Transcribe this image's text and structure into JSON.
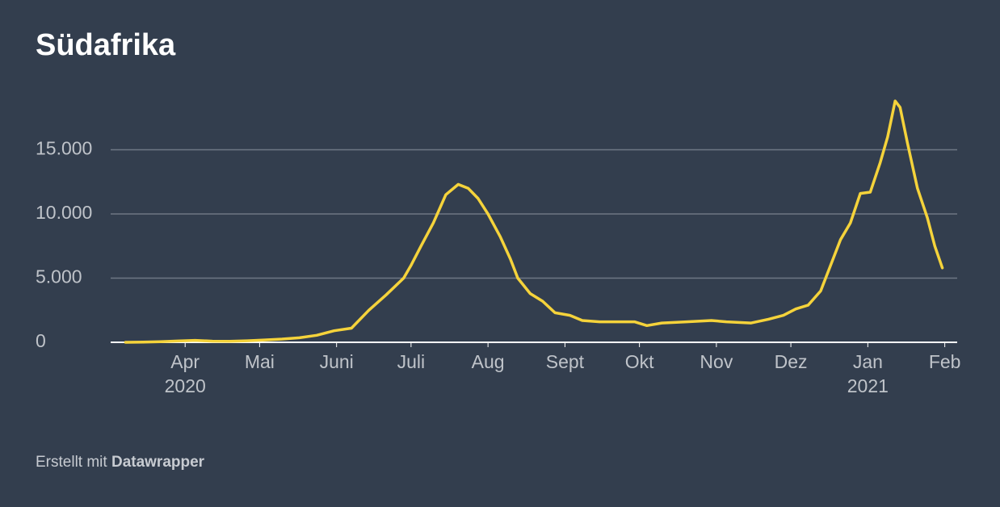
{
  "chart_data": {
    "type": "line",
    "title": "Südafrika",
    "x": [
      "2020-03-08",
      "2020-03-15",
      "2020-03-22",
      "2020-03-29",
      "2020-04-05",
      "2020-04-12",
      "2020-04-19",
      "2020-04-26",
      "2020-05-03",
      "2020-05-10",
      "2020-05-17",
      "2020-05-24",
      "2020-05-31",
      "2020-06-07",
      "2020-06-14",
      "2020-06-21",
      "2020-06-28",
      "2020-07-01",
      "2020-07-05",
      "2020-07-10",
      "2020-07-15",
      "2020-07-20",
      "2020-07-24",
      "2020-07-28",
      "2020-08-01",
      "2020-08-06",
      "2020-08-10",
      "2020-08-13",
      "2020-08-18",
      "2020-08-23",
      "2020-08-28",
      "2020-09-03",
      "2020-09-08",
      "2020-09-15",
      "2020-09-22",
      "2020-09-29",
      "2020-10-04",
      "2020-10-10",
      "2020-10-20",
      "2020-10-30",
      "2020-11-05",
      "2020-11-15",
      "2020-11-22",
      "2020-11-28",
      "2020-12-03",
      "2020-12-08",
      "2020-12-13",
      "2020-12-17",
      "2020-12-21",
      "2020-12-25",
      "2020-12-29",
      "2021-01-02",
      "2021-01-06",
      "2021-01-09",
      "2021-01-12",
      "2021-01-14",
      "2021-01-17",
      "2021-01-21",
      "2021-01-25",
      "2021-01-28",
      "2021-01-31"
    ],
    "values": [
      0,
      20,
      50,
      100,
      150,
      90,
      80,
      120,
      180,
      250,
      350,
      550,
      900,
      1100,
      2500,
      3700,
      5000,
      6000,
      7500,
      9300,
      11500,
      12300,
      12000,
      11200,
      10000,
      8200,
      6500,
      5000,
      3800,
      3200,
      2300,
      2100,
      1700,
      1600,
      1600,
      1600,
      1300,
      1500,
      1600,
      1700,
      1600,
      1500,
      1800,
      2100,
      2600,
      2900,
      4000,
      6000,
      8000,
      9300,
      11600,
      11700,
      14000,
      16000,
      18800,
      18300,
      15500,
      12000,
      9700,
      7500,
      5800
    ],
    "color": "#f5d33b",
    "xlim": [
      "2020-03-02",
      "2021-02-06"
    ],
    "xticks": [
      {
        "value": "2020-04-01",
        "label": "Apr"
      },
      {
        "value": "2020-05-01",
        "label": "Mai"
      },
      {
        "value": "2020-06-01",
        "label": "Juni"
      },
      {
        "value": "2020-07-01",
        "label": "Juli"
      },
      {
        "value": "2020-08-01",
        "label": "Aug"
      },
      {
        "value": "2020-09-01",
        "label": "Sept"
      },
      {
        "value": "2020-10-01",
        "label": "Okt"
      },
      {
        "value": "2020-11-01",
        "label": "Nov"
      },
      {
        "value": "2020-12-01",
        "label": "Dez"
      },
      {
        "value": "2021-01-01",
        "label": "Jan"
      },
      {
        "value": "2021-02-01",
        "label": "Feb"
      }
    ],
    "year_labels": [
      {
        "value": "2020-04-01",
        "label": "2020"
      },
      {
        "value": "2021-01-01",
        "label": "2021"
      }
    ],
    "ylim": [
      0,
      20000
    ],
    "yticks": [
      0,
      {
        "value": 5000,
        "label": "5.000"
      },
      {
        "value": 10000,
        "label": "10.000"
      },
      {
        "value": 15000,
        "label": "15.000"
      }
    ],
    "grid": true
  },
  "footer": {
    "prefix": "Erstellt mit",
    "brand": "Datawrapper"
  }
}
